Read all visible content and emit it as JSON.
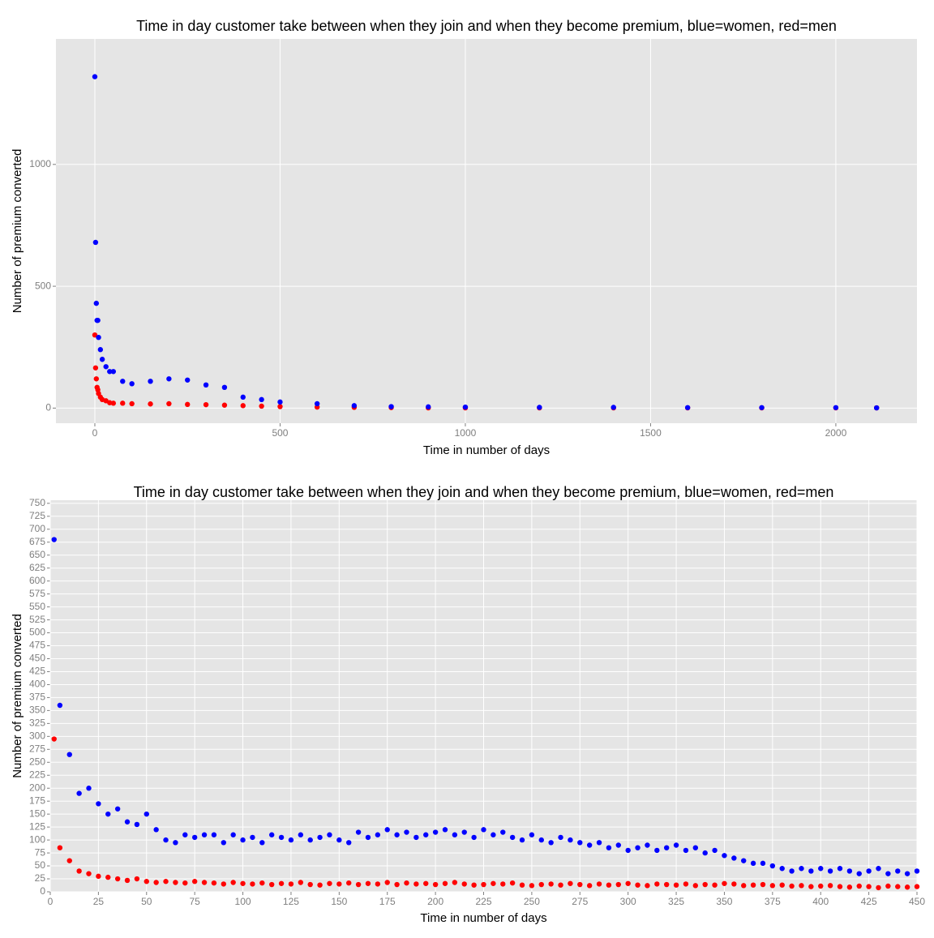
{
  "chart_data": [
    {
      "type": "scatter",
      "title": "Time in day customer take between when they join and when they become premium, blue=women, red=men",
      "x_label": "Time in number of days",
      "y_label": "Number of premium converted",
      "xlim": [
        -105,
        2219
      ],
      "ylim": [
        -62,
        1515
      ],
      "xticks": [
        0,
        500,
        1000,
        1500,
        2000
      ],
      "yticks": [
        0,
        500,
        1000
      ],
      "grid": true,
      "x": [
        0,
        2,
        4,
        6,
        8,
        10,
        15,
        20,
        30,
        40,
        50,
        75,
        100,
        150,
        200,
        250,
        300,
        350,
        400,
        450,
        500,
        600,
        700,
        800,
        900,
        1000,
        1200,
        1400,
        1600,
        1800,
        2000,
        2110
      ],
      "series": [
        {
          "name": "men",
          "color": "#ff0000",
          "values": [
            300,
            165,
            120,
            85,
            75,
            60,
            45,
            35,
            30,
            22,
            20,
            20,
            18,
            17,
            18,
            15,
            14,
            12,
            10,
            8,
            6,
            4,
            3,
            2,
            1,
            1,
            1,
            1,
            1,
            1,
            1,
            1
          ]
        },
        {
          "name": "women",
          "color": "#0000ff",
          "values": [
            1360,
            680,
            430,
            360,
            360,
            290,
            240,
            200,
            170,
            150,
            150,
            110,
            100,
            110,
            120,
            115,
            95,
            85,
            45,
            35,
            25,
            18,
            10,
            6,
            5,
            4,
            3,
            3,
            2,
            2,
            2,
            1
          ]
        }
      ]
    },
    {
      "type": "scatter",
      "title": "Time in day customer take between when they join and when they become premium, blue=women, red=men",
      "x_label": "Time in number of days",
      "y_label": "Number of premium converted",
      "xlim": [
        0,
        450
      ],
      "ylim": [
        0,
        756
      ],
      "xticks": [
        0,
        25,
        50,
        75,
        100,
        125,
        150,
        175,
        200,
        225,
        250,
        275,
        300,
        325,
        350,
        375,
        400,
        425,
        450
      ],
      "yticks": [
        0,
        25,
        50,
        75,
        100,
        125,
        150,
        175,
        200,
        225,
        250,
        275,
        300,
        325,
        350,
        375,
        400,
        425,
        450,
        475,
        500,
        525,
        550,
        575,
        600,
        625,
        650,
        675,
        700,
        725,
        750
      ],
      "grid": true,
      "x": [
        2,
        5,
        10,
        15,
        20,
        25,
        30,
        35,
        40,
        45,
        50,
        55,
        60,
        65,
        70,
        75,
        80,
        85,
        90,
        95,
        100,
        105,
        110,
        115,
        120,
        125,
        130,
        135,
        140,
        145,
        150,
        155,
        160,
        165,
        170,
        175,
        180,
        185,
        190,
        195,
        200,
        205,
        210,
        215,
        220,
        225,
        230,
        235,
        240,
        245,
        250,
        255,
        260,
        265,
        270,
        275,
        280,
        285,
        290,
        295,
        300,
        305,
        310,
        315,
        320,
        325,
        330,
        335,
        340,
        345,
        350,
        355,
        360,
        365,
        370,
        375,
        380,
        385,
        390,
        395,
        400,
        405,
        410,
        415,
        420,
        425,
        430,
        435,
        440,
        445,
        450
      ],
      "series": [
        {
          "name": "men",
          "color": "#ff0000",
          "values": [
            295,
            85,
            60,
            40,
            35,
            30,
            28,
            25,
            22,
            25,
            20,
            18,
            20,
            18,
            17,
            20,
            18,
            17,
            15,
            18,
            16,
            15,
            17,
            14,
            16,
            15,
            18,
            14,
            13,
            16,
            15,
            17,
            14,
            16,
            15,
            18,
            14,
            17,
            15,
            16,
            14,
            16,
            18,
            15,
            13,
            14,
            16,
            15,
            17,
            13,
            12,
            14,
            15,
            13,
            16,
            14,
            12,
            15,
            13,
            14,
            16,
            13,
            12,
            15,
            14,
            13,
            15,
            12,
            14,
            13,
            16,
            15,
            12,
            13,
            14,
            12,
            13,
            11,
            12,
            10,
            11,
            12,
            10,
            9,
            11,
            10,
            8,
            11,
            10,
            9,
            10
          ]
        },
        {
          "name": "women",
          "color": "#0000ff",
          "values": [
            680,
            360,
            265,
            190,
            200,
            170,
            150,
            160,
            135,
            130,
            150,
            120,
            100,
            95,
            110,
            105,
            110,
            110,
            95,
            110,
            100,
            105,
            95,
            110,
            105,
            100,
            110,
            100,
            105,
            110,
            100,
            95,
            115,
            105,
            110,
            120,
            110,
            115,
            105,
            110,
            115,
            120,
            110,
            115,
            105,
            120,
            110,
            115,
            105,
            100,
            110,
            100,
            95,
            105,
            100,
            95,
            90,
            95,
            85,
            90,
            80,
            85,
            90,
            80,
            85,
            90,
            80,
            85,
            75,
            80,
            70,
            65,
            60,
            55,
            55,
            50,
            45,
            40,
            45,
            40,
            45,
            40,
            45,
            40,
            35,
            40,
            45,
            35,
            40,
            35,
            40
          ]
        }
      ]
    }
  ]
}
